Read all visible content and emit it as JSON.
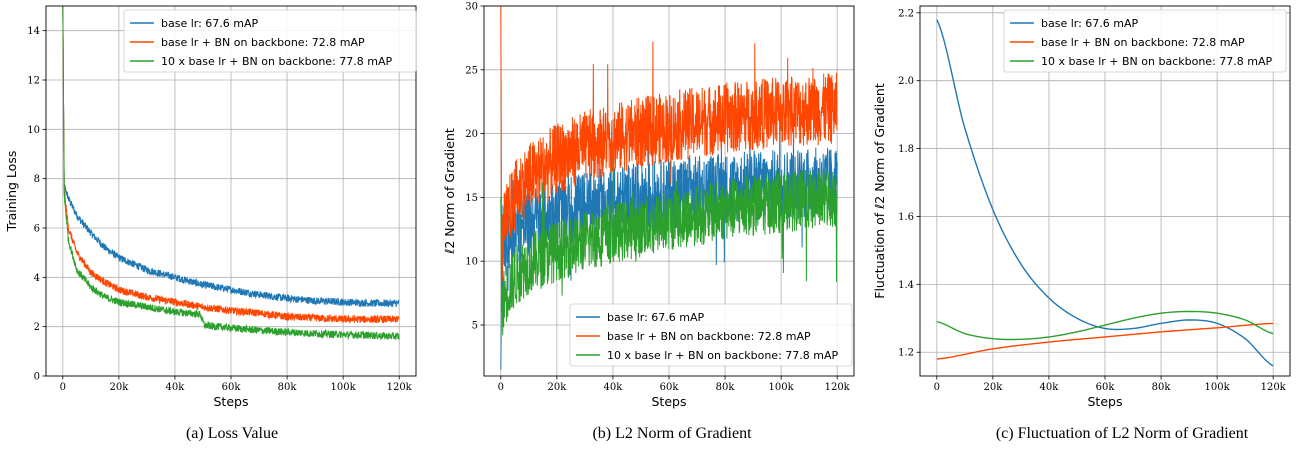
{
  "colors": {
    "base": "#1f77b4",
    "bn": "#ff4500",
    "bn10x": "#2ca02c"
  },
  "captions": [
    "(a)  Loss Value",
    "(b)  L2 Norm of Gradient",
    "(c)  Fluctuation of L2 Norm of Gradient"
  ],
  "chart_data": [
    {
      "type": "line",
      "xlabel": "Steps",
      "ylabel": "Training Loss",
      "xlim": [
        -6000,
        126000
      ],
      "ylim": [
        0,
        15
      ],
      "xticks": [
        0,
        20000,
        40000,
        60000,
        80000,
        100000,
        120000
      ],
      "xticklabels": [
        "0",
        "20k",
        "40k",
        "60k",
        "80k",
        "100k",
        "120k"
      ],
      "yticks": [
        0,
        2,
        4,
        6,
        8,
        10,
        12,
        14
      ],
      "grid": true,
      "legend_position": "top-right",
      "series": [
        {
          "name": "base lr:  67.6 mAP",
          "color": "#1f77b4",
          "x": [
            0,
            500,
            2000,
            5000,
            10000,
            15000,
            20000,
            30000,
            40000,
            50000,
            60000,
            70000,
            80000,
            90000,
            100000,
            110000,
            120000
          ],
          "values": [
            15.0,
            7.7,
            7.2,
            6.5,
            5.8,
            5.2,
            4.8,
            4.3,
            4.0,
            3.7,
            3.5,
            3.3,
            3.15,
            3.05,
            3.0,
            2.95,
            2.95
          ],
          "noise": 0.15
        },
        {
          "name": "base lr + BN on backbone: 72.8 mAP",
          "color": "#ff4500",
          "x": [
            0,
            500,
            2000,
            5000,
            10000,
            15000,
            20000,
            30000,
            40000,
            50000,
            60000,
            70000,
            80000,
            90000,
            100000,
            110000,
            120000
          ],
          "values": [
            15.0,
            7.5,
            6.0,
            5.0,
            4.2,
            3.8,
            3.5,
            3.2,
            3.0,
            2.8,
            2.65,
            2.55,
            2.4,
            2.35,
            2.3,
            2.3,
            2.3
          ],
          "noise": 0.15
        },
        {
          "name": "10 x base lr + BN on backbone: 77.8 mAP",
          "color": "#2ca02c",
          "x": [
            0,
            500,
            2000,
            5000,
            10000,
            15000,
            20000,
            30000,
            40000,
            49000,
            50500,
            60000,
            70000,
            80000,
            90000,
            100000,
            110000,
            120000
          ],
          "values": [
            15.0,
            7.3,
            5.5,
            4.3,
            3.6,
            3.2,
            3.0,
            2.8,
            2.6,
            2.5,
            2.05,
            1.95,
            1.85,
            1.78,
            1.72,
            1.68,
            1.65,
            1.6
          ],
          "noise": 0.15
        }
      ]
    },
    {
      "type": "line",
      "xlabel": "Steps",
      "ylabel": "ℓ2 Norm of Gradient",
      "xlim": [
        -6000,
        126000
      ],
      "ylim": [
        1,
        30
      ],
      "xticks": [
        0,
        20000,
        40000,
        60000,
        80000,
        100000,
        120000
      ],
      "xticklabels": [
        "0",
        "20k",
        "40k",
        "60k",
        "80k",
        "100k",
        "120k"
      ],
      "yticks": [
        5,
        10,
        15,
        20,
        25,
        30
      ],
      "grid": true,
      "legend_position": "bottom-right",
      "series": [
        {
          "name": "base lr:  67.6 mAP",
          "color": "#1f77b4",
          "x": [
            0,
            300,
            1000,
            3000,
            6000,
            10000,
            20000,
            30000,
            40000,
            50000,
            60000,
            70000,
            80000,
            90000,
            100000,
            110000,
            120000
          ],
          "values": [
            1.5,
            9.0,
            11.0,
            12.0,
            12.5,
            13.0,
            13.8,
            14.3,
            14.7,
            15.0,
            15.3,
            15.5,
            15.7,
            15.9,
            16.0,
            16.1,
            16.2
          ],
          "noise": 2.8
        },
        {
          "name": "base lr + BN on backbone: 72.8 mAP",
          "color": "#ff4500",
          "x": [
            0,
            300,
            1000,
            3000,
            6000,
            10000,
            20000,
            30000,
            40000,
            50000,
            60000,
            70000,
            80000,
            90000,
            100000,
            110000,
            120000
          ],
          "values": [
            30.0,
            10.0,
            12.5,
            14.0,
            15.5,
            16.5,
            18.0,
            19.0,
            19.6,
            20.1,
            20.5,
            20.9,
            21.2,
            21.5,
            21.7,
            21.8,
            22.0
          ],
          "noise": 2.8
        },
        {
          "name": "10 x base lr + BN on backbone: 77.8 mAP",
          "color": "#2ca02c",
          "x": [
            0,
            300,
            1000,
            3000,
            6000,
            10000,
            20000,
            30000,
            40000,
            50000,
            60000,
            70000,
            80000,
            90000,
            100000,
            110000,
            120000
          ],
          "values": [
            15.0,
            6.0,
            7.0,
            8.0,
            9.0,
            9.8,
            10.8,
            11.6,
            12.2,
            12.7,
            13.2,
            13.6,
            14.0,
            14.3,
            14.6,
            14.8,
            15.0
          ],
          "noise": 2.4
        }
      ]
    },
    {
      "type": "line",
      "xlabel": "Steps",
      "ylabel": "Fluctuation of ℓ2 Norm of Gradient",
      "xlim": [
        -6000,
        126000
      ],
      "ylim": [
        1.13,
        2.22
      ],
      "xticks": [
        0,
        20000,
        40000,
        60000,
        80000,
        100000,
        120000
      ],
      "xticklabels": [
        "0",
        "20k",
        "40k",
        "60k",
        "80k",
        "100k",
        "120k"
      ],
      "yticks": [
        1.2,
        1.4,
        1.6,
        1.8,
        2.0,
        2.2
      ],
      "grid": true,
      "legend_position": "top-right",
      "series": [
        {
          "name": "base lr:  67.6 mAP",
          "color": "#1f77b4",
          "x": [
            0,
            10000,
            20000,
            30000,
            40000,
            50000,
            60000,
            70000,
            80000,
            90000,
            100000,
            110000,
            120000
          ],
          "values": [
            2.18,
            1.86,
            1.62,
            1.46,
            1.36,
            1.3,
            1.27,
            1.27,
            1.285,
            1.295,
            1.285,
            1.24,
            1.16
          ],
          "noise": 0
        },
        {
          "name": "base lr + BN on backbone: 72.8 mAP",
          "color": "#ff4500",
          "x": [
            0,
            20000,
            40000,
            60000,
            80000,
            100000,
            120000
          ],
          "values": [
            1.18,
            1.21,
            1.23,
            1.245,
            1.26,
            1.272,
            1.285
          ],
          "noise": 0
        },
        {
          "name": "10 x base lr + BN on backbone: 77.8 mAP",
          "color": "#2ca02c",
          "x": [
            0,
            10000,
            20000,
            30000,
            40000,
            50000,
            60000,
            70000,
            80000,
            90000,
            100000,
            110000,
            120000
          ],
          "values": [
            1.29,
            1.255,
            1.24,
            1.238,
            1.245,
            1.26,
            1.28,
            1.3,
            1.315,
            1.32,
            1.315,
            1.295,
            1.255
          ],
          "noise": 0
        }
      ]
    }
  ]
}
